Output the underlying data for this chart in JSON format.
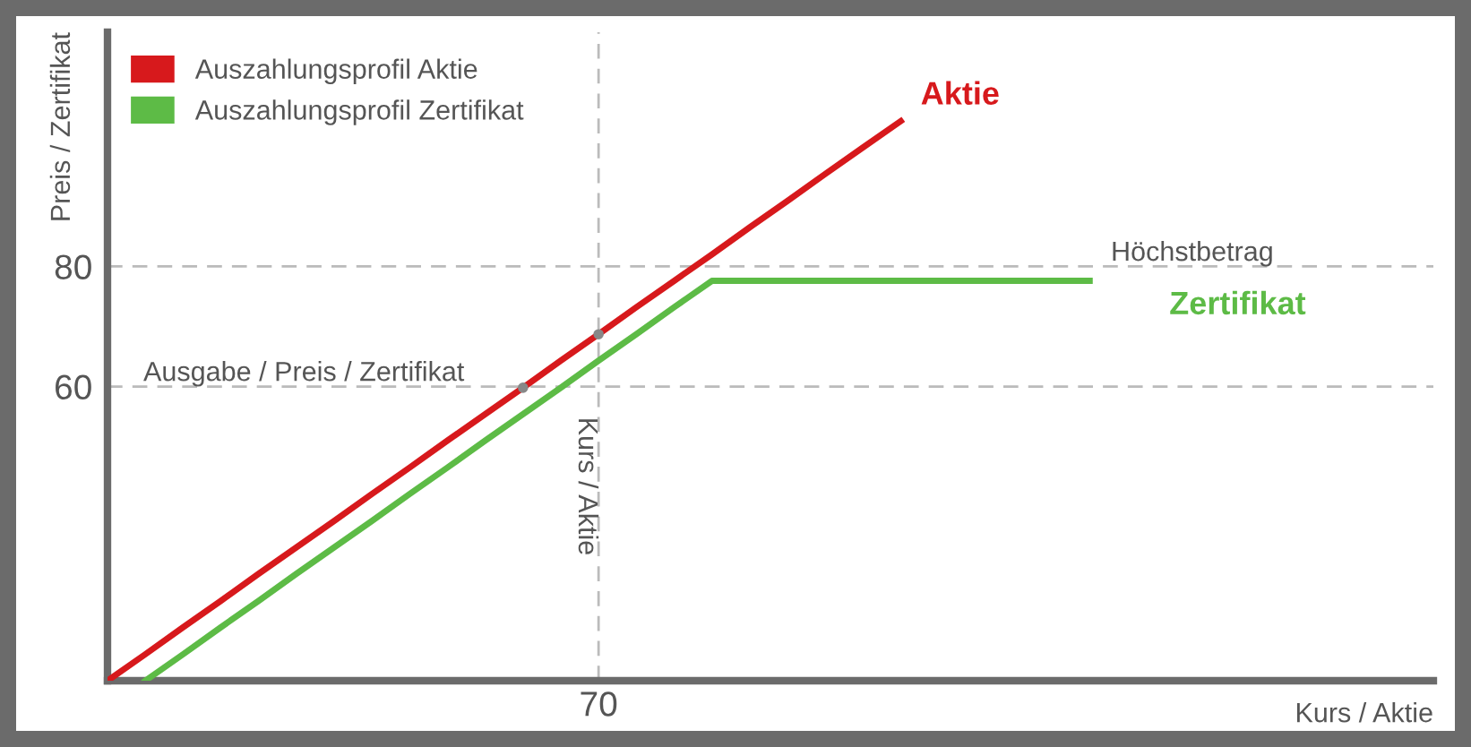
{
  "chart_data": {
    "type": "line",
    "xlabel": "Kurs / Aktie",
    "ylabel": "Preis / Zertifikat",
    "categories": [
      null,
      null,
      null,
      null,
      null,
      null,
      null,
      null,
      null,
      null,
      null,
      null,
      null,
      "70",
      null,
      null,
      null,
      null,
      null,
      null,
      null,
      null,
      null,
      null,
      null,
      null,
      null,
      null,
      null,
      null,
      null,
      null,
      null,
      null,
      null,
      null
    ],
    "ylim": [
      11,
      119
    ],
    "yticks": [
      60,
      80
    ],
    "series": [
      {
        "name": "Auszahlungsprofil Aktie",
        "color": "#d7191c",
        "values": [
          11,
          15.4,
          19.9,
          24.3,
          28.8,
          33.2,
          37.6,
          42.1,
          46.5,
          51,
          55.4,
          59.8,
          64.3,
          68.7,
          73.2,
          77.6,
          82,
          86.5,
          90.9,
          95.4,
          99.8,
          104.2,
          null,
          null,
          null,
          null,
          null,
          null,
          null,
          null,
          null,
          null,
          null,
          null,
          null,
          null
        ]
      },
      {
        "name": "Auszahlungsprofil Zertifikat",
        "color": "#5dbb46",
        "values": [
          null,
          11,
          15.4,
          19.9,
          24.3,
          28.8,
          33.2,
          37.6,
          42.1,
          46.5,
          51,
          55.4,
          59.8,
          64.3,
          68.7,
          73.2,
          77.6,
          77.6,
          77.6,
          77.6,
          77.6,
          77.6,
          77.6,
          77.6,
          77.6,
          77.6,
          77.6,
          null,
          null,
          null,
          null,
          null,
          null,
          null,
          null,
          null
        ]
      },
      {
        "type": "scatter",
        "marker": "circle",
        "color": "#888888",
        "values": [
          null,
          null,
          null,
          null,
          null,
          null,
          null,
          null,
          null,
          null,
          null,
          59.8,
          null,
          68.7,
          null,
          null,
          null,
          null,
          null,
          null,
          null,
          null,
          null,
          null,
          null,
          null,
          null,
          null,
          null,
          null,
          null,
          null,
          null,
          null,
          null,
          null
        ]
      }
    ],
    "annotations": [
      "Aktie",
      "Zertifikat"
    ],
    "ref_lines": [
      {
        "axis": "y",
        "value": 80,
        "label": "Höchstbetrag",
        "color": "#bbbbbb",
        "line_style": "dashed"
      },
      {
        "axis": "y",
        "value": 60,
        "label": "Ausgabe / Preis / Zertifikat",
        "color": "#bbbbbb",
        "line_style": "dashed"
      },
      {
        "axis": "x",
        "value": "70",
        "label": "Kurs / Aktie",
        "color": "#bbbbbb",
        "line_style": "dashed"
      }
    ],
    "legend": "top left",
    "marker": "none",
    "line_style": "solid"
  }
}
